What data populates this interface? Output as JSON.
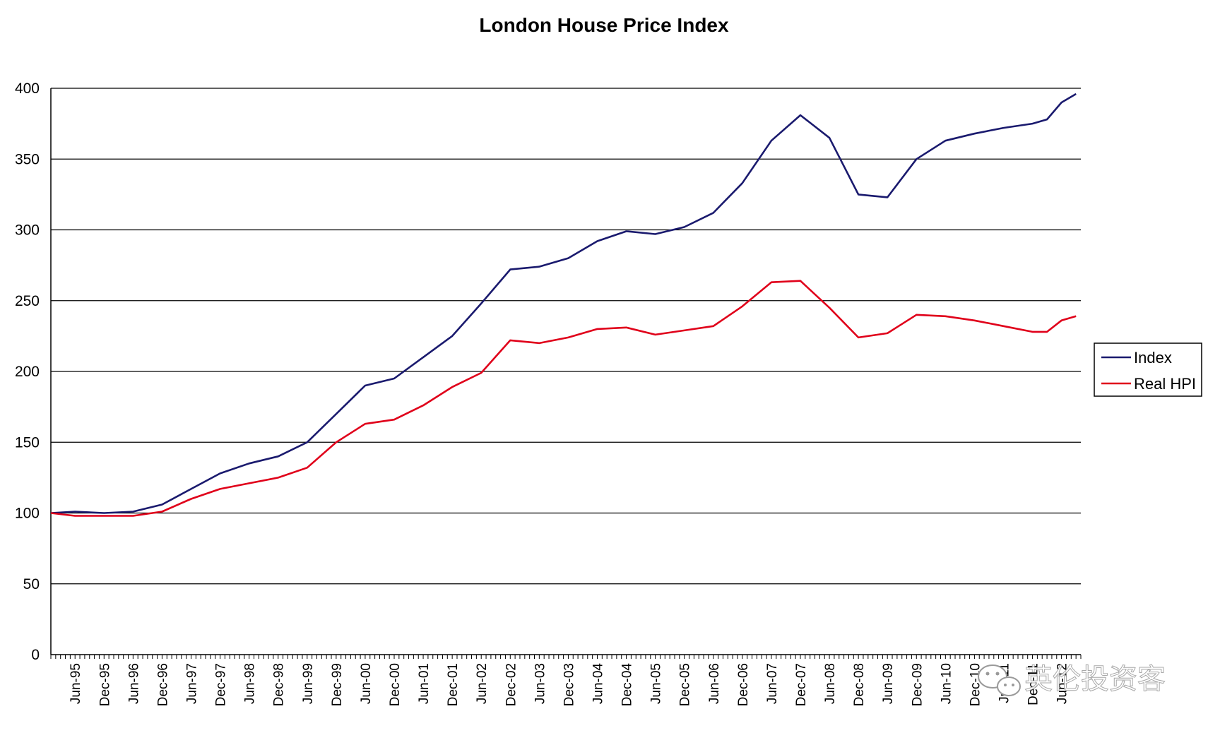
{
  "chart_data": {
    "type": "line",
    "title": "London House Price Index",
    "xlabel": "",
    "ylabel": "",
    "ylim": [
      0,
      400
    ],
    "yticks": [
      0,
      50,
      100,
      150,
      200,
      250,
      300,
      350,
      400
    ],
    "grid": true,
    "legend_position": "right",
    "x_tick_labels": [
      "Jun-95",
      "Dec-95",
      "Jun-96",
      "Dec-96",
      "Jun-97",
      "Dec-97",
      "Jun-98",
      "Dec-98",
      "Jun-99",
      "Dec-99",
      "Jun-00",
      "Dec-00",
      "Jun-01",
      "Dec-01",
      "Jun-02",
      "Dec-02",
      "Jun-03",
      "Dec-03",
      "Jun-04",
      "Dec-04",
      "Jun-05",
      "Dec-05",
      "Jun-06",
      "Dec-06",
      "Jun-07",
      "Dec-07",
      "Jun-08",
      "Dec-08",
      "Jun-09",
      "Dec-09",
      "Jun-10",
      "Dec-10",
      "Jun-11",
      "Dec-11",
      "Jun-12"
    ],
    "series": [
      {
        "name": "Index",
        "color": "#1a1a6e",
        "points": [
          {
            "x": "Jan-95",
            "y": 100
          },
          {
            "x": "Jun-95",
            "y": 101
          },
          {
            "x": "Dec-95",
            "y": 100
          },
          {
            "x": "Jun-96",
            "y": 101
          },
          {
            "x": "Dec-96",
            "y": 106
          },
          {
            "x": "Jun-97",
            "y": 117
          },
          {
            "x": "Dec-97",
            "y": 128
          },
          {
            "x": "Jun-98",
            "y": 135
          },
          {
            "x": "Dec-98",
            "y": 140
          },
          {
            "x": "Jun-99",
            "y": 150
          },
          {
            "x": "Dec-99",
            "y": 170
          },
          {
            "x": "Jun-00",
            "y": 190
          },
          {
            "x": "Dec-00",
            "y": 195
          },
          {
            "x": "Jun-01",
            "y": 210
          },
          {
            "x": "Dec-01",
            "y": 225
          },
          {
            "x": "Jun-02",
            "y": 248
          },
          {
            "x": "Dec-02",
            "y": 272
          },
          {
            "x": "Jun-03",
            "y": 274
          },
          {
            "x": "Dec-03",
            "y": 280
          },
          {
            "x": "Jun-04",
            "y": 292
          },
          {
            "x": "Dec-04",
            "y": 299
          },
          {
            "x": "Jun-05",
            "y": 297
          },
          {
            "x": "Dec-05",
            "y": 302
          },
          {
            "x": "Jun-06",
            "y": 312
          },
          {
            "x": "Dec-06",
            "y": 333
          },
          {
            "x": "Jun-07",
            "y": 363
          },
          {
            "x": "Dec-07",
            "y": 381
          },
          {
            "x": "Jun-08",
            "y": 365
          },
          {
            "x": "Dec-08",
            "y": 325
          },
          {
            "x": "Jun-09",
            "y": 323
          },
          {
            "x": "Dec-09",
            "y": 350
          },
          {
            "x": "Jun-10",
            "y": 363
          },
          {
            "x": "Dec-10",
            "y": 368
          },
          {
            "x": "Jun-11",
            "y": 372
          },
          {
            "x": "Dec-11",
            "y": 375
          },
          {
            "x": "Mar-12",
            "y": 378
          },
          {
            "x": "Jun-12",
            "y": 390
          },
          {
            "x": "Sep-12",
            "y": 396
          }
        ]
      },
      {
        "name": "Real HPI",
        "color": "#e0001a",
        "points": [
          {
            "x": "Jan-95",
            "y": 100
          },
          {
            "x": "Jun-95",
            "y": 98
          },
          {
            "x": "Dec-95",
            "y": 98
          },
          {
            "x": "Jun-96",
            "y": 98
          },
          {
            "x": "Dec-96",
            "y": 101
          },
          {
            "x": "Jun-97",
            "y": 110
          },
          {
            "x": "Dec-97",
            "y": 117
          },
          {
            "x": "Jun-98",
            "y": 121
          },
          {
            "x": "Dec-98",
            "y": 125
          },
          {
            "x": "Jun-99",
            "y": 132
          },
          {
            "x": "Dec-99",
            "y": 150
          },
          {
            "x": "Jun-00",
            "y": 163
          },
          {
            "x": "Dec-00",
            "y": 166
          },
          {
            "x": "Jun-01",
            "y": 176
          },
          {
            "x": "Dec-01",
            "y": 189
          },
          {
            "x": "Jun-02",
            "y": 199
          },
          {
            "x": "Dec-02",
            "y": 222
          },
          {
            "x": "Jun-03",
            "y": 220
          },
          {
            "x": "Dec-03",
            "y": 224
          },
          {
            "x": "Jun-04",
            "y": 230
          },
          {
            "x": "Dec-04",
            "y": 231
          },
          {
            "x": "Jun-05",
            "y": 226
          },
          {
            "x": "Dec-05",
            "y": 229
          },
          {
            "x": "Jun-06",
            "y": 232
          },
          {
            "x": "Dec-06",
            "y": 246
          },
          {
            "x": "Jun-07",
            "y": 263
          },
          {
            "x": "Dec-07",
            "y": 264
          },
          {
            "x": "Jun-08",
            "y": 245
          },
          {
            "x": "Dec-08",
            "y": 224
          },
          {
            "x": "Jun-09",
            "y": 227
          },
          {
            "x": "Dec-09",
            "y": 240
          },
          {
            "x": "Jun-10",
            "y": 239
          },
          {
            "x": "Dec-10",
            "y": 236
          },
          {
            "x": "Jun-11",
            "y": 232
          },
          {
            "x": "Dec-11",
            "y": 228
          },
          {
            "x": "Mar-12",
            "y": 228
          },
          {
            "x": "Jun-12",
            "y": 236
          },
          {
            "x": "Sep-12",
            "y": 239
          }
        ]
      }
    ]
  },
  "watermark": {
    "text": "英伦投资客",
    "icon": "wechat-icon"
  }
}
